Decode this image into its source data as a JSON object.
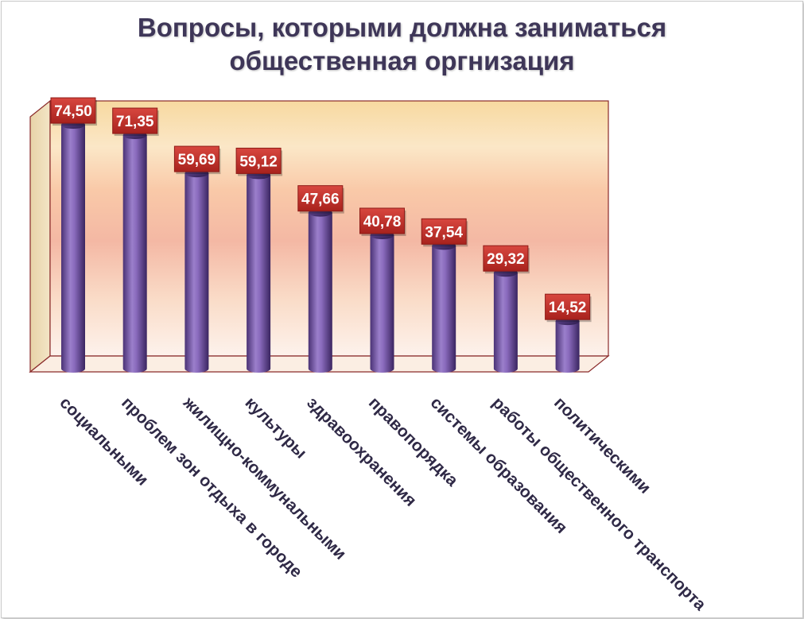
{
  "chart_data": {
    "type": "bar",
    "title_lines": [
      "Вопросы, которыми должна заниматься",
      "общественная оргнизация"
    ],
    "categories": [
      "социальными",
      "проблем зон отдыха в городе",
      "жилищно-коммунальными",
      "культуры",
      "здравоохранения",
      "правопорядка",
      "системы образования",
      "работы общественного транспорта",
      "политическими"
    ],
    "values": [
      74.5,
      71.35,
      59.69,
      59.12,
      47.66,
      40.78,
      37.54,
      29.32,
      14.52
    ],
    "value_labels": [
      "74,50",
      "71,35",
      "59,69",
      "59,12",
      "47,66",
      "40,78",
      "37,54",
      "29,32",
      "14,52"
    ],
    "ylim": [
      0,
      80
    ],
    "grid": false,
    "legend": "none",
    "colors": {
      "bar": "#7a5aa8",
      "bar_dark": "#3f2a66",
      "label_box": "#c0302a",
      "title": "#3e3658"
    }
  }
}
